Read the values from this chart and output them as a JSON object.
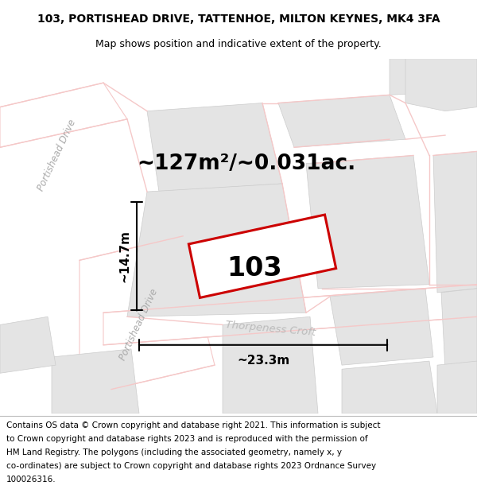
{
  "title_line1": "103, PORTISHEAD DRIVE, TATTENHOE, MILTON KEYNES, MK4 3FA",
  "title_line2": "Map shows position and indicative extent of the property.",
  "footer_text": "Contains OS data © Crown copyright and database right 2021. This information is subject to Crown copyright and database rights 2023 and is reproduced with the permission of HM Land Registry. The polygons (including the associated geometry, namely x, y co-ordinates) are subject to Crown copyright and database rights 2023 Ordnance Survey 100026316.",
  "area_label": "~127m²/~0.031ac.",
  "house_number": "103",
  "width_label": "~23.3m",
  "height_label": "~14.7m",
  "street_label_upper": "Portishead Drive",
  "street_label_lower": "Portishead Drive",
  "street_label_thorpe": "Thorpeness Croft",
  "bg_color": "#f2f2f2",
  "road_color": "#f5c8c8",
  "block_color": "#e4e4e4",
  "white_road": "#ffffff",
  "property_stroke": "#cc0000",
  "property_fill": "#ffffff",
  "title_fontsize": 10,
  "subtitle_fontsize": 9,
  "footer_fontsize": 7.5,
  "area_fontsize": 19,
  "number_fontsize": 24,
  "dim_fontsize": 11
}
